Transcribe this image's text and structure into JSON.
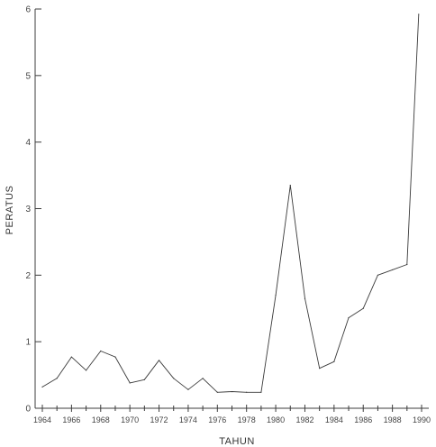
{
  "chart_data": {
    "type": "line",
    "title": "",
    "xlabel": "TAHUN",
    "ylabel": "PERATUS",
    "xlim": [
      1964,
      1990
    ],
    "ylim": [
      0,
      6
    ],
    "grid": false,
    "x_ticks": [
      1964,
      1966,
      1968,
      1970,
      1972,
      1974,
      1976,
      1978,
      1980,
      1982,
      1984,
      1986,
      1988,
      1990
    ],
    "x_tick_labels": [
      "1964",
      "1966",
      "1968",
      "1970",
      "1972",
      "1974",
      "1976",
      "1978",
      "1980",
      "1982",
      "1984",
      "1986",
      "1988",
      "1990"
    ],
    "y_ticks": [
      0,
      1,
      2,
      3,
      4,
      5,
      6
    ],
    "y_tick_labels": [
      "0",
      "1",
      "2",
      "3",
      "4",
      "5",
      "6"
    ],
    "series": [
      {
        "x": [
          1964,
          1965,
          1966,
          1967,
          1968,
          1969,
          1970,
          1971,
          1972,
          1973,
          1974,
          1975,
          1976,
          1977,
          1978,
          1979,
          1980,
          1981,
          1982,
          1983,
          1984,
          1985,
          1986,
          1987,
          1988,
          1989,
          1989.8
        ],
        "values": [
          0.32,
          0.45,
          0.77,
          0.57,
          0.86,
          0.77,
          0.38,
          0.43,
          0.72,
          0.45,
          0.28,
          0.45,
          0.24,
          0.25,
          0.24,
          0.24,
          1.7,
          3.35,
          1.65,
          0.6,
          0.7,
          1.36,
          1.5,
          2.0,
          2.08,
          2.16,
          5.92
        ]
      }
    ]
  }
}
